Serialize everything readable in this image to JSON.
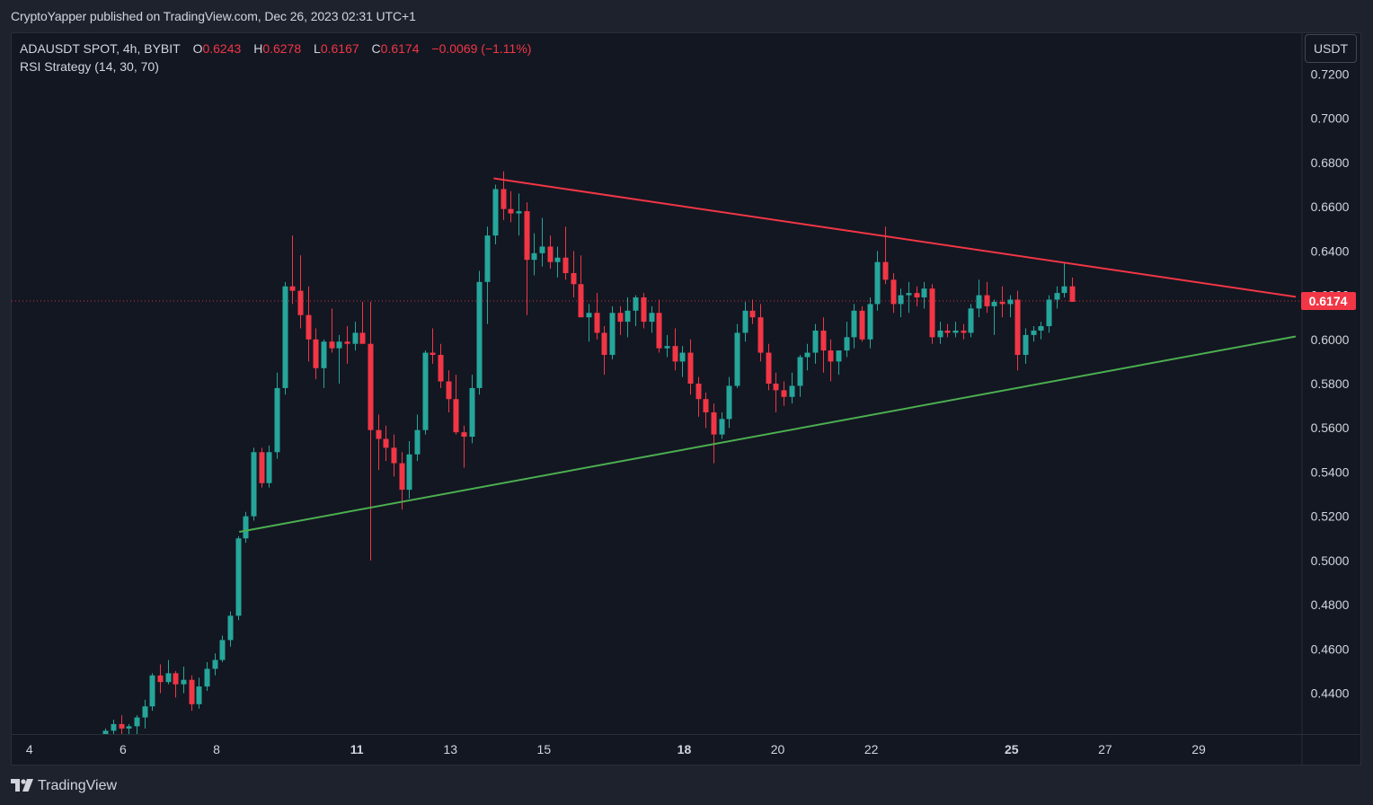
{
  "header": {
    "published_line": "CryptoYapper published on TradingView.com, Dec 26, 2023 02:31 UTC+1"
  },
  "legend": {
    "symbol": "ADAUSDT SPOT, 4h, BYBIT",
    "o_label": "O",
    "o_value": "0.6243",
    "h_label": "H",
    "h_value": "0.6278",
    "l_label": "L",
    "l_value": "0.6167",
    "c_label": "C",
    "c_value": "0.6174",
    "change": "−0.0069 (−1.11%)",
    "indicator": "RSI Strategy (14, 30, 70)"
  },
  "currency_button": "USDT",
  "footer": {
    "brand": "TradingView"
  },
  "colors": {
    "up": "#26a69a",
    "down": "#f23645",
    "resistance": "#f23645",
    "support": "#4caf50",
    "text": "#d1d4dc"
  },
  "chart_data": {
    "type": "candlestick",
    "symbol": "ADAUSDT",
    "timeframe": "4h",
    "x_axis_unit": "day of December 2023",
    "x_ticks": [
      {
        "day": 4,
        "label": "4",
        "bold": false
      },
      {
        "day": 6,
        "label": "6",
        "bold": false
      },
      {
        "day": 8,
        "label": "8",
        "bold": false
      },
      {
        "day": 11,
        "label": "11",
        "bold": true
      },
      {
        "day": 13,
        "label": "13",
        "bold": false
      },
      {
        "day": 15,
        "label": "15",
        "bold": false
      },
      {
        "day": 18,
        "label": "18",
        "bold": true
      },
      {
        "day": 20,
        "label": "20",
        "bold": false
      },
      {
        "day": 22,
        "label": "22",
        "bold": false
      },
      {
        "day": 25,
        "label": "25",
        "bold": true
      },
      {
        "day": 27,
        "label": "27",
        "bold": false
      },
      {
        "day": 29,
        "label": "29",
        "bold": false
      }
    ],
    "y_ticks": [
      "0.7200",
      "0.7000",
      "0.6800",
      "0.6600",
      "0.6400",
      "0.6200",
      "0.6000",
      "0.5800",
      "0.5600",
      "0.5400",
      "0.5200",
      "0.5000",
      "0.4800",
      "0.4600",
      "0.4400"
    ],
    "y_range": [
      0.4215,
      0.7385
    ],
    "x_range": [
      3.62,
      31.19
    ],
    "last_price": 0.6174,
    "last_price_label": "0.6174",
    "grid": false,
    "candles_columns": [
      "day",
      "open",
      "high",
      "low",
      "close"
    ],
    "candles": [
      [
        5.62,
        0.421,
        0.424,
        0.419,
        0.423
      ],
      [
        5.79,
        0.423,
        0.428,
        0.42,
        0.426
      ],
      [
        5.96,
        0.426,
        0.43,
        0.421,
        0.424
      ],
      [
        6.12,
        0.424,
        0.426,
        0.419,
        0.425
      ],
      [
        6.29,
        0.425,
        0.43,
        0.421,
        0.429
      ],
      [
        6.46,
        0.429,
        0.437,
        0.424,
        0.434
      ],
      [
        6.62,
        0.434,
        0.449,
        0.432,
        0.448
      ],
      [
        6.79,
        0.448,
        0.453,
        0.44,
        0.445
      ],
      [
        6.96,
        0.445,
        0.455,
        0.444,
        0.449
      ],
      [
        7.12,
        0.449,
        0.45,
        0.438,
        0.444
      ],
      [
        7.29,
        0.444,
        0.452,
        0.44,
        0.446
      ],
      [
        7.46,
        0.446,
        0.448,
        0.432,
        0.435
      ],
      [
        7.62,
        0.435,
        0.447,
        0.433,
        0.443
      ],
      [
        7.79,
        0.443,
        0.454,
        0.441,
        0.451
      ],
      [
        7.96,
        0.451,
        0.458,
        0.448,
        0.455
      ],
      [
        8.12,
        0.455,
        0.466,
        0.454,
        0.464
      ],
      [
        8.29,
        0.464,
        0.477,
        0.461,
        0.475
      ],
      [
        8.46,
        0.475,
        0.511,
        0.473,
        0.51
      ],
      [
        8.62,
        0.51,
        0.522,
        0.508,
        0.52
      ],
      [
        8.79,
        0.52,
        0.551,
        0.518,
        0.549
      ],
      [
        8.96,
        0.549,
        0.551,
        0.533,
        0.535
      ],
      [
        9.12,
        0.535,
        0.552,
        0.533,
        0.549
      ],
      [
        9.29,
        0.549,
        0.585,
        0.546,
        0.578
      ],
      [
        9.46,
        0.578,
        0.626,
        0.575,
        0.624
      ],
      [
        9.62,
        0.624,
        0.647,
        0.616,
        0.622
      ],
      [
        9.79,
        0.622,
        0.638,
        0.605,
        0.611
      ],
      [
        9.96,
        0.611,
        0.624,
        0.59,
        0.6
      ],
      [
        10.12,
        0.6,
        0.605,
        0.582,
        0.587
      ],
      [
        10.29,
        0.587,
        0.6,
        0.578,
        0.599
      ],
      [
        10.46,
        0.599,
        0.614,
        0.594,
        0.596
      ],
      [
        10.62,
        0.596,
        0.602,
        0.58,
        0.599
      ],
      [
        10.79,
        0.599,
        0.606,
        0.589,
        0.598
      ],
      [
        10.96,
        0.598,
        0.608,
        0.595,
        0.603
      ],
      [
        11.12,
        0.603,
        0.617,
        0.599,
        0.598
      ],
      [
        11.29,
        0.598,
        0.617,
        0.5,
        0.559
      ],
      [
        11.46,
        0.559,
        0.566,
        0.541,
        0.555
      ],
      [
        11.62,
        0.555,
        0.561,
        0.545,
        0.551
      ],
      [
        11.79,
        0.551,
        0.557,
        0.538,
        0.544
      ],
      [
        11.96,
        0.544,
        0.549,
        0.523,
        0.532
      ],
      [
        12.12,
        0.532,
        0.554,
        0.528,
        0.548
      ],
      [
        12.29,
        0.548,
        0.566,
        0.545,
        0.559
      ],
      [
        12.46,
        0.559,
        0.595,
        0.557,
        0.594
      ],
      [
        12.62,
        0.594,
        0.605,
        0.589,
        0.593
      ],
      [
        12.79,
        0.593,
        0.598,
        0.578,
        0.581
      ],
      [
        12.96,
        0.581,
        0.586,
        0.567,
        0.573
      ],
      [
        13.12,
        0.573,
        0.584,
        0.557,
        0.558
      ],
      [
        13.29,
        0.558,
        0.561,
        0.542,
        0.556
      ],
      [
        13.46,
        0.556,
        0.584,
        0.553,
        0.578
      ],
      [
        13.62,
        0.578,
        0.631,
        0.575,
        0.626
      ],
      [
        13.79,
        0.626,
        0.651,
        0.607,
        0.647
      ],
      [
        13.96,
        0.647,
        0.67,
        0.643,
        0.668
      ],
      [
        14.12,
        0.668,
        0.676,
        0.654,
        0.659
      ],
      [
        14.29,
        0.659,
        0.667,
        0.653,
        0.657
      ],
      [
        14.46,
        0.657,
        0.666,
        0.647,
        0.658
      ],
      [
        14.62,
        0.658,
        0.662,
        0.611,
        0.636
      ],
      [
        14.79,
        0.636,
        0.648,
        0.629,
        0.639
      ],
      [
        14.96,
        0.639,
        0.655,
        0.633,
        0.642
      ],
      [
        15.12,
        0.642,
        0.647,
        0.632,
        0.635
      ],
      [
        15.29,
        0.635,
        0.642,
        0.628,
        0.637
      ],
      [
        15.46,
        0.637,
        0.651,
        0.627,
        0.63
      ],
      [
        15.62,
        0.63,
        0.64,
        0.619,
        0.625
      ],
      [
        15.79,
        0.625,
        0.638,
        0.611,
        0.61
      ],
      [
        15.96,
        0.61,
        0.616,
        0.599,
        0.612
      ],
      [
        16.12,
        0.612,
        0.621,
        0.6,
        0.603
      ],
      [
        16.29,
        0.603,
        0.606,
        0.584,
        0.593
      ],
      [
        16.46,
        0.593,
        0.615,
        0.591,
        0.612
      ],
      [
        16.62,
        0.612,
        0.615,
        0.602,
        0.608
      ],
      [
        16.79,
        0.608,
        0.619,
        0.601,
        0.613
      ],
      [
        16.96,
        0.613,
        0.62,
        0.606,
        0.619
      ],
      [
        17.12,
        0.619,
        0.621,
        0.605,
        0.608
      ],
      [
        17.29,
        0.608,
        0.615,
        0.603,
        0.612
      ],
      [
        17.46,
        0.612,
        0.618,
        0.594,
        0.596
      ],
      [
        17.62,
        0.596,
        0.602,
        0.592,
        0.597
      ],
      [
        17.79,
        0.597,
        0.605,
        0.586,
        0.59
      ],
      [
        17.96,
        0.59,
        0.597,
        0.583,
        0.594
      ],
      [
        18.12,
        0.594,
        0.6,
        0.575,
        0.58
      ],
      [
        18.29,
        0.58,
        0.583,
        0.565,
        0.573
      ],
      [
        18.46,
        0.573,
        0.576,
        0.56,
        0.567
      ],
      [
        18.62,
        0.567,
        0.571,
        0.544,
        0.557
      ],
      [
        18.79,
        0.557,
        0.567,
        0.555,
        0.564
      ],
      [
        18.96,
        0.564,
        0.583,
        0.56,
        0.579
      ],
      [
        19.12,
        0.579,
        0.607,
        0.578,
        0.603
      ],
      [
        19.29,
        0.603,
        0.617,
        0.599,
        0.613
      ],
      [
        19.46,
        0.613,
        0.618,
        0.607,
        0.61
      ],
      [
        19.62,
        0.61,
        0.616,
        0.59,
        0.594
      ],
      [
        19.79,
        0.594,
        0.598,
        0.577,
        0.58
      ],
      [
        19.96,
        0.58,
        0.585,
        0.567,
        0.577
      ],
      [
        20.12,
        0.577,
        0.581,
        0.57,
        0.574
      ],
      [
        20.29,
        0.574,
        0.585,
        0.571,
        0.579
      ],
      [
        20.46,
        0.579,
        0.593,
        0.574,
        0.592
      ],
      [
        20.62,
        0.592,
        0.598,
        0.586,
        0.594
      ],
      [
        20.79,
        0.594,
        0.607,
        0.589,
        0.604
      ],
      [
        20.96,
        0.604,
        0.61,
        0.585,
        0.595
      ],
      [
        21.12,
        0.595,
        0.6,
        0.581,
        0.59
      ],
      [
        21.29,
        0.59,
        0.595,
        0.584,
        0.595
      ],
      [
        21.46,
        0.595,
        0.608,
        0.592,
        0.601
      ],
      [
        21.62,
        0.601,
        0.616,
        0.596,
        0.613
      ],
      [
        21.79,
        0.613,
        0.615,
        0.599,
        0.6
      ],
      [
        21.96,
        0.6,
        0.619,
        0.596,
        0.616
      ],
      [
        22.12,
        0.616,
        0.64,
        0.613,
        0.635
      ],
      [
        22.29,
        0.635,
        0.651,
        0.625,
        0.627
      ],
      [
        22.46,
        0.627,
        0.63,
        0.612,
        0.616
      ],
      [
        22.62,
        0.616,
        0.623,
        0.61,
        0.62
      ],
      [
        22.79,
        0.62,
        0.626,
        0.612,
        0.621
      ],
      [
        22.96,
        0.621,
        0.624,
        0.615,
        0.619
      ],
      [
        23.12,
        0.619,
        0.626,
        0.614,
        0.623
      ],
      [
        23.29,
        0.623,
        0.625,
        0.598,
        0.601
      ],
      [
        23.46,
        0.601,
        0.608,
        0.598,
        0.604
      ],
      [
        23.62,
        0.604,
        0.607,
        0.601,
        0.603
      ],
      [
        23.79,
        0.603,
        0.608,
        0.601,
        0.604
      ],
      [
        23.96,
        0.604,
        0.607,
        0.6,
        0.603
      ],
      [
        24.12,
        0.603,
        0.616,
        0.601,
        0.614
      ],
      [
        24.29,
        0.614,
        0.627,
        0.61,
        0.62
      ],
      [
        24.46,
        0.62,
        0.626,
        0.612,
        0.615
      ],
      [
        24.62,
        0.615,
        0.618,
        0.602,
        0.617
      ],
      [
        24.79,
        0.617,
        0.624,
        0.61,
        0.616
      ],
      [
        24.96,
        0.616,
        0.62,
        0.61,
        0.618
      ],
      [
        25.12,
        0.618,
        0.622,
        0.586,
        0.593
      ],
      [
        25.29,
        0.593,
        0.605,
        0.589,
        0.602
      ],
      [
        25.46,
        0.602,
        0.606,
        0.599,
        0.604
      ],
      [
        25.62,
        0.604,
        0.608,
        0.6,
        0.606
      ],
      [
        25.79,
        0.606,
        0.62,
        0.603,
        0.618
      ],
      [
        25.96,
        0.618,
        0.624,
        0.614,
        0.621
      ],
      [
        26.12,
        0.621,
        0.635,
        0.619,
        0.624
      ],
      [
        26.29,
        0.624,
        0.628,
        0.617,
        0.617
      ]
    ],
    "trendlines": [
      {
        "name": "resistance",
        "color": "#f23645",
        "points": [
          [
            13.94,
            0.6728
          ],
          [
            31.06,
            0.6193
          ]
        ]
      },
      {
        "name": "support",
        "color": "#4caf50",
        "points": [
          [
            8.5,
            0.513
          ],
          [
            31.06,
            0.6013
          ]
        ]
      }
    ]
  }
}
